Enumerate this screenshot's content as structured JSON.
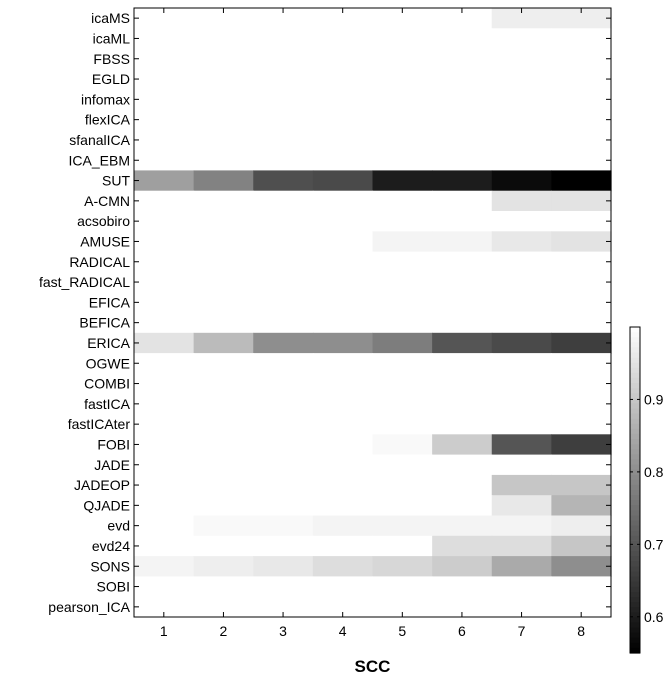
{
  "chart_data": {
    "type": "heatmap",
    "title": "",
    "xlabel": "SCC",
    "ylabel": "",
    "x_categories": [
      "1",
      "2",
      "3",
      "4",
      "5",
      "6",
      "7",
      "8"
    ],
    "y_categories": [
      "icaMS",
      "icaML",
      "FBSS",
      "EGLD",
      "infomax",
      "flexICA",
      "sfanalICA",
      "ICA_EBM",
      "SUT",
      "A-CMN",
      "acsobiro",
      "AMUSE",
      "RADICAL",
      "fast_RADICAL",
      "EFICA",
      "BEFICA",
      "ERICA",
      "OGWE",
      "COMBI",
      "fastICA",
      "fastICAter",
      "FOBI",
      "JADE",
      "JADEOP",
      "QJADE",
      "evd",
      "evd24",
      "SONS",
      "SOBI",
      "pearson_ICA"
    ],
    "values": [
      [
        1,
        1,
        1,
        1,
        1,
        1,
        0.97,
        0.97
      ],
      [
        1,
        1,
        1,
        1,
        1,
        1,
        1,
        1
      ],
      [
        1,
        1,
        1,
        1,
        1,
        1,
        1,
        1
      ],
      [
        1,
        1,
        1,
        1,
        1,
        1,
        1,
        1
      ],
      [
        1,
        1,
        1,
        1,
        1,
        1,
        1,
        1
      ],
      [
        1,
        1,
        1,
        1,
        1,
        1,
        1,
        1
      ],
      [
        1,
        1,
        1,
        1,
        1,
        1,
        1,
        1
      ],
      [
        1,
        1,
        1,
        1,
        1,
        1,
        1,
        1
      ],
      [
        0.83,
        0.78,
        0.69,
        0.68,
        0.6,
        0.6,
        0.57,
        0.55
      ],
      [
        1,
        1,
        1,
        1,
        1,
        1,
        0.95,
        0.95
      ],
      [
        1,
        1,
        1,
        1,
        1,
        1,
        1,
        1
      ],
      [
        1,
        1,
        1,
        1,
        0.98,
        0.98,
        0.96,
        0.95
      ],
      [
        1,
        1,
        1,
        1,
        1,
        1,
        1,
        1
      ],
      [
        1,
        1,
        1,
        1,
        1,
        1,
        1,
        1
      ],
      [
        1,
        1,
        1,
        1,
        1,
        1,
        1,
        1
      ],
      [
        1,
        1,
        1,
        1,
        1,
        1,
        1,
        1
      ],
      [
        0.95,
        0.88,
        0.8,
        0.8,
        0.77,
        0.7,
        0.68,
        0.66
      ],
      [
        1,
        1,
        1,
        1,
        1,
        1,
        1,
        1
      ],
      [
        1,
        1,
        1,
        1,
        1,
        1,
        1,
        1
      ],
      [
        1,
        1,
        1,
        1,
        1,
        1,
        1,
        1
      ],
      [
        1,
        1,
        1,
        1,
        1,
        1,
        1,
        1
      ],
      [
        1,
        1,
        1,
        1,
        0.99,
        0.91,
        0.7,
        0.66
      ],
      [
        1,
        1,
        1,
        1,
        1,
        1,
        1,
        1
      ],
      [
        1,
        1,
        1,
        1,
        1,
        1,
        0.9,
        0.9
      ],
      [
        1,
        1,
        1,
        1,
        1,
        1,
        0.96,
        0.87
      ],
      [
        1,
        0.99,
        0.99,
        0.98,
        0.98,
        0.98,
        0.98,
        0.97
      ],
      [
        1,
        1,
        1,
        1,
        1,
        0.94,
        0.94,
        0.9
      ],
      [
        0.98,
        0.97,
        0.96,
        0.94,
        0.93,
        0.91,
        0.85,
        0.8
      ],
      [
        1,
        1,
        1,
        1,
        1,
        1,
        1,
        1
      ],
      [
        1,
        1,
        1,
        1,
        1,
        1,
        1,
        1
      ]
    ],
    "colorbar": {
      "colormap": "gray",
      "range": [
        0.55,
        1.0
      ],
      "ticks": [
        0.6,
        0.7,
        0.8,
        0.9
      ],
      "tick_labels": [
        "0.6",
        "0.7",
        "0.8",
        "0.9"
      ]
    },
    "grid": false,
    "legend": "colorbar right"
  }
}
